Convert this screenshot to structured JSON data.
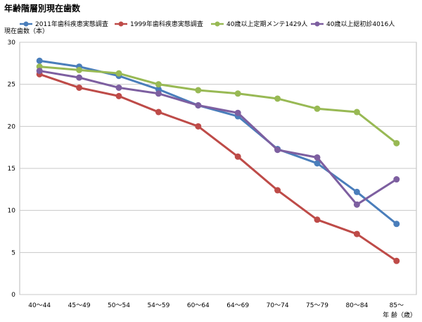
{
  "chart_data": {
    "type": "line",
    "title": "年齢階層別現在歯数",
    "ylabel": "現在歯数（本）",
    "xlabel": "年 齢（歳）",
    "ylim": [
      0,
      30
    ],
    "yticks": [
      "0",
      "5",
      "10",
      "15",
      "20",
      "25",
      "30"
    ],
    "grid": true,
    "legend_position": "top",
    "categories": [
      "40～44",
      "45～49",
      "50～54",
      "54～59",
      "60～64",
      "64～69",
      "70～74",
      "75～79",
      "80～84",
      "85～"
    ],
    "series": [
      {
        "name": "2011年歯科疾患実態調査",
        "color": "#4a7ebb",
        "values": [
          27.8,
          27.1,
          26.0,
          24.4,
          22.5,
          21.2,
          17.3,
          15.6,
          12.2,
          8.4
        ]
      },
      {
        "name": "1999年歯科疾患実態調査",
        "color": "#be4b48",
        "values": [
          26.2,
          24.6,
          23.6,
          21.7,
          20.0,
          16.4,
          12.4,
          8.9,
          7.2,
          4.0
        ]
      },
      {
        "name": "40歳以上定期メンテ1429人",
        "color": "#98b954",
        "values": [
          27.1,
          26.7,
          26.3,
          25.0,
          24.3,
          23.9,
          23.3,
          22.1,
          21.7,
          18.0
        ]
      },
      {
        "name": "40歳以上総初診4016人",
        "color": "#7d5fa0",
        "values": [
          26.6,
          25.8,
          24.6,
          23.9,
          22.5,
          21.6,
          17.2,
          16.3,
          10.7,
          13.7
        ]
      }
    ]
  }
}
